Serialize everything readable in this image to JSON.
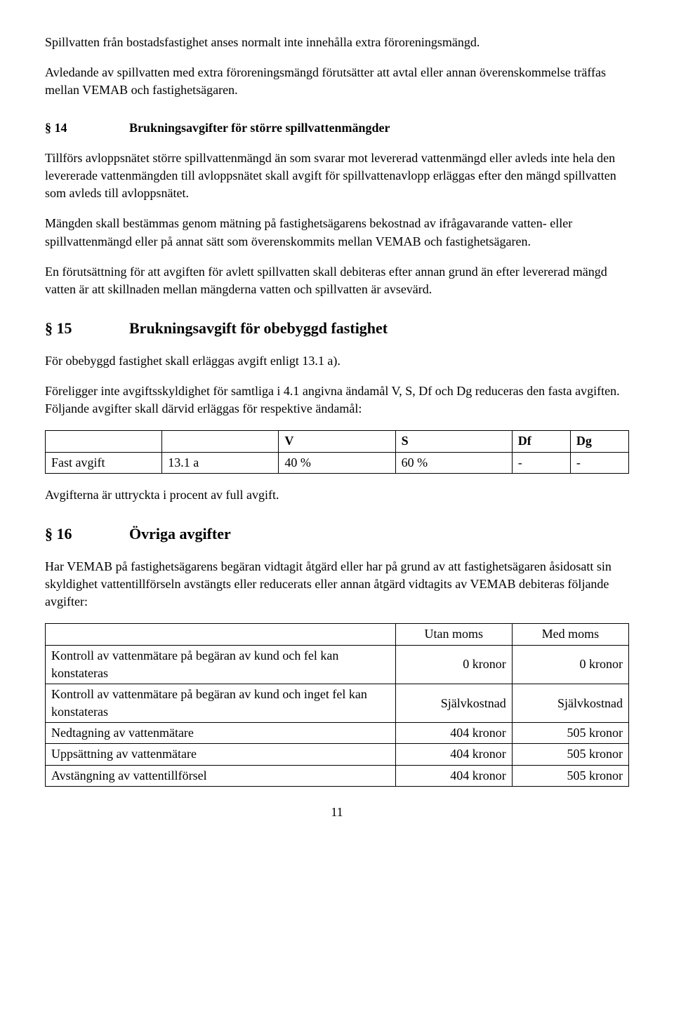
{
  "intro": {
    "p1": "Spillvatten från bostadsfastighet anses normalt inte innehålla extra föroreningsmängd.",
    "p2": "Avledande av spillvatten med extra föroreningsmängd förutsätter att avtal eller annan överenskommelse träffas mellan VEMAB och fastighetsägaren."
  },
  "s14": {
    "num": "§ 14",
    "title": "Brukningsavgifter för större spillvattenmängder",
    "p1": "Tillförs avloppsnätet större spillvattenmängd än som svarar mot levererad vattenmängd eller avleds inte hela den levererade vattenmängden till avloppsnätet skall avgift för spillvattenavlopp erläggas efter den mängd spillvatten som avleds till avloppsnätet.",
    "p2": "Mängden skall bestämmas genom mätning på fastighetsägarens bekostnad av ifrågavarande vatten- eller spillvattenmängd eller på annat sätt som överenskommits mellan VEMAB och fastighetsägaren.",
    "p3": "En förutsättning för att avgiften för avlett spillvatten skall debiteras efter annan grund än efter levererad mängd vatten är att skillnaden mellan mängderna vatten och spillvatten är avsevärd."
  },
  "s15": {
    "num": "§ 15",
    "title": "Brukningsavgift för obebyggd fastighet",
    "p1": "För obebyggd fastighet skall erläggas avgift enligt 13.1 a).",
    "p2": "Föreligger inte avgiftsskyldighet för samtliga i 4.1 angivna ändamål V, S, Df och Dg reduceras den fasta avgiften. Följande avgifter skall därvid erläggas för respektive ändamål:",
    "table": {
      "headers": [
        "",
        "",
        "V",
        "S",
        "Df",
        "Dg"
      ],
      "row": [
        "Fast avgift",
        "13.1 a",
        "40 %",
        "60 %",
        "-",
        "-"
      ]
    },
    "p3": "Avgifterna är uttryckta i procent av full avgift."
  },
  "s16": {
    "num": "§ 16",
    "title": "Övriga avgifter",
    "p1": "Har VEMAB på fastighetsägarens begäran vidtagit åtgärd eller har på grund av att fastighetsägaren åsidosatt sin skyldighet vattentillförseln avstängts eller reducerats eller annan åtgärd vidtagits av VEMAB debiteras följande avgifter:",
    "table": {
      "head": [
        "",
        "Utan moms",
        "Med moms"
      ],
      "rows": [
        [
          "Kontroll av vattenmätare på begäran av kund och fel kan konstateras",
          "0 kronor",
          "0 kronor"
        ],
        [
          "Kontroll av vattenmätare på begäran av kund och inget fel kan konstateras",
          "Självkostnad",
          "Självkostnad"
        ],
        [
          "Nedtagning av vattenmätare",
          "404 kronor",
          "505 kronor"
        ],
        [
          "Uppsättning av vattenmätare",
          "404 kronor",
          "505 kronor"
        ],
        [
          "Avstängning av vattentillförsel",
          "404 kronor",
          "505 kronor"
        ]
      ]
    }
  },
  "page_number": "11"
}
